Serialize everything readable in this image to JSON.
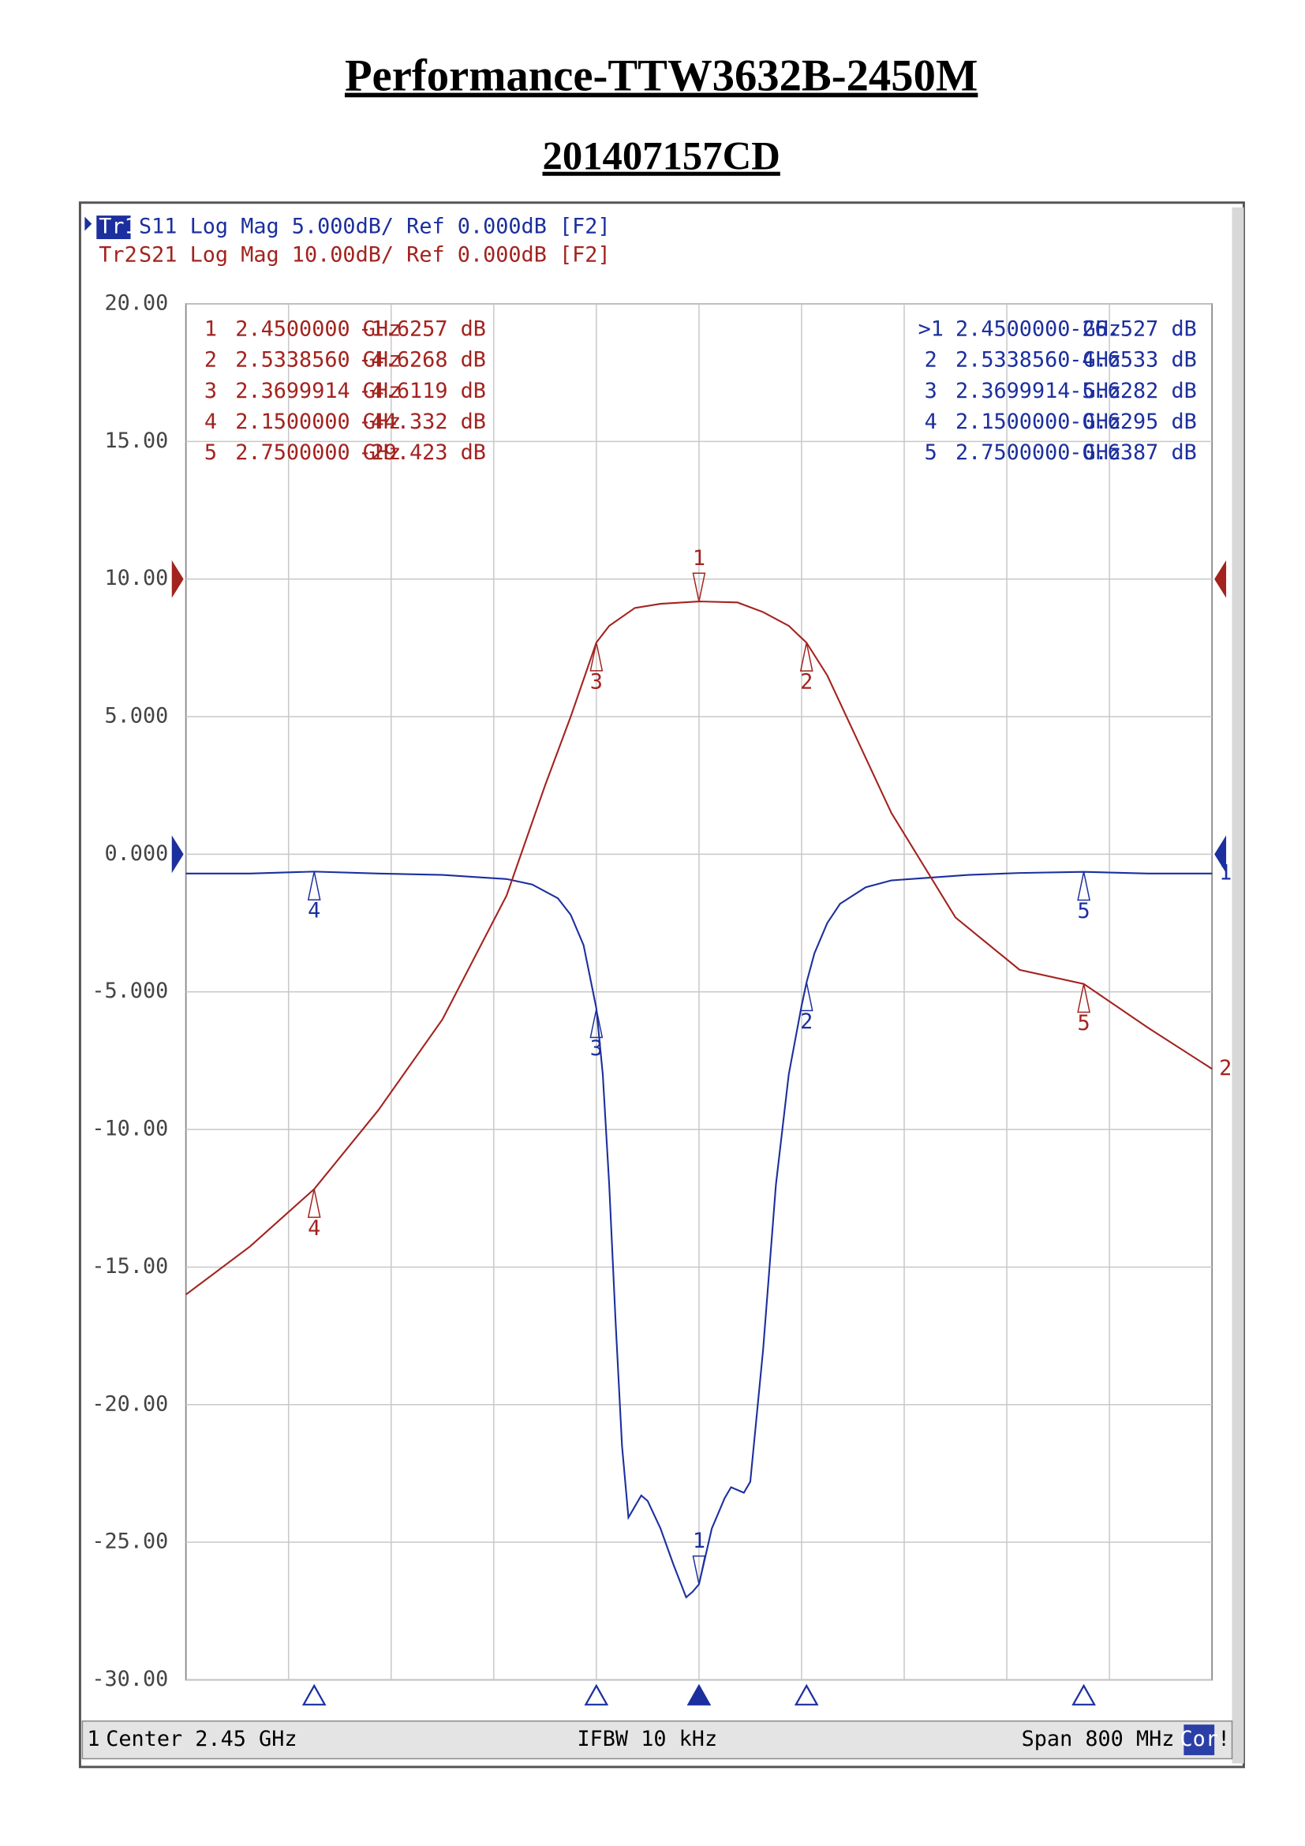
{
  "title": "Performance-TTW3632B-2450M",
  "subtitle": "201407157CD",
  "chart_data": {
    "type": "line",
    "header": [
      {
        "tag": "Tr1",
        "text": "S11 Log Mag 5.000dB/ Ref 0.000dB [F2]"
      },
      {
        "tag": "Tr2",
        "text": "S21 Log Mag 10.00dB/ Ref 0.000dB [F2]"
      }
    ],
    "xlim": [
      2.05,
      2.85
    ],
    "ylim": [
      -30,
      20
    ],
    "yticks": [
      {
        "value": 20,
        "label": "20.00"
      },
      {
        "value": 15,
        "label": "15.00"
      },
      {
        "value": 10,
        "label": "10.00"
      },
      {
        "value": 5,
        "label": "5.000"
      },
      {
        "value": 0,
        "label": "0.000"
      },
      {
        "value": -5,
        "label": "-5.000"
      },
      {
        "value": -10,
        "label": "-10.00"
      },
      {
        "value": -15,
        "label": "-15.00"
      },
      {
        "value": -20,
        "label": "-20.00"
      },
      {
        "value": -25,
        "label": "-25.00"
      },
      {
        "value": -30,
        "label": "-30.00"
      }
    ],
    "y2lim": [
      -80,
      20
    ],
    "grid": true,
    "series": [
      {
        "name": "S11",
        "trace_number": "1",
        "color": "#1c2f9e",
        "x": [
          2.05,
          2.1,
          2.15,
          2.2,
          2.25,
          2.3,
          2.32,
          2.34,
          2.35,
          2.36,
          2.37,
          2.375,
          2.38,
          2.385,
          2.39,
          2.395,
          2.4,
          2.405,
          2.41,
          2.42,
          2.43,
          2.44,
          2.445,
          2.45,
          2.46,
          2.47,
          2.475,
          2.485,
          2.49,
          2.5,
          2.51,
          2.52,
          2.53,
          2.5339,
          2.54,
          2.55,
          2.56,
          2.58,
          2.6,
          2.63,
          2.66,
          2.7,
          2.75,
          2.8,
          2.85
        ],
        "values": [
          -0.7,
          -0.7,
          -0.63,
          -0.7,
          -0.75,
          -0.9,
          -1.1,
          -1.6,
          -2.2,
          -3.3,
          -5.6,
          -8,
          -12,
          -17,
          -21.5,
          -24.1,
          -23.7,
          -23.3,
          -23.5,
          -24.5,
          -25.8,
          -27.0,
          -26.8,
          -26.527,
          -24.5,
          -23.4,
          -23.0,
          -23.2,
          -22.8,
          -18,
          -12,
          -8,
          -5.5,
          -4.6533,
          -3.6,
          -2.5,
          -1.8,
          -1.2,
          -0.95,
          -0.85,
          -0.75,
          -0.68,
          -0.6387,
          -0.7,
          -0.7
        ],
        "markers": {
          "labels": [
            "1",
            "2",
            "3",
            "4",
            "5"
          ],
          "table_labels": [
            ">1",
            "2",
            "3",
            "4",
            "5"
          ],
          "x": [
            2.45,
            2.533856,
            2.3699914,
            2.15,
            2.75
          ],
          "x_labels": [
            "2.4500000 GHz",
            "2.5338560 GHz",
            "2.3699914 GHz",
            "2.1500000 GHz",
            "2.7500000 GHz"
          ],
          "values": [
            -26.527,
            -4.6533,
            -5.6282,
            -0.6295,
            -0.6387
          ],
          "value_labels": [
            "-26.527 dB",
            "-4.6533 dB",
            "-5.6282 dB",
            "-0.6295 dB",
            "-0.6387 dB"
          ]
        }
      },
      {
        "name": "S21",
        "trace_number": "2",
        "color": "#a3231f",
        "axis": "y2",
        "x": [
          2.05,
          2.1,
          2.15,
          2.2,
          2.25,
          2.3,
          2.33,
          2.35,
          2.3699914,
          2.38,
          2.4,
          2.42,
          2.45,
          2.48,
          2.5,
          2.52,
          2.533856,
          2.55,
          2.6,
          2.65,
          2.7,
          2.75,
          2.8,
          2.85
        ],
        "values": [
          -52,
          -48.5,
          -44.332,
          -38.6,
          -32,
          -23,
          -15,
          -10,
          -4.6119,
          -3.4,
          -2.1,
          -1.8,
          -1.6257,
          -1.7,
          -2.4,
          -3.4,
          -4.6268,
          -7,
          -17,
          -24.6,
          -28.4,
          -29.423,
          -32.6,
          -35.6
        ],
        "markers": {
          "labels": [
            "1",
            "2",
            "3",
            "4",
            "5"
          ],
          "table_labels": [
            "1",
            "2",
            "3",
            "4",
            "5"
          ],
          "x": [
            2.45,
            2.533856,
            2.3699914,
            2.15,
            2.75
          ],
          "x_labels": [
            "2.4500000 GHz",
            "2.5338560 GHz",
            "2.3699914 GHz",
            "2.1500000 GHz",
            "2.7500000 GHz"
          ],
          "values": [
            -1.6257,
            -4.6268,
            -4.6119,
            -44.332,
            -29.423
          ],
          "value_labels": [
            "-1.6257 dB",
            "-4.6268 dB",
            "-4.6119 dB",
            "-44.332 dB",
            "-29.423 dB"
          ]
        }
      }
    ],
    "footer": {
      "channel": "1",
      "center": "Center 2.45 GHz",
      "ifbw": "IFBW 10 kHz",
      "span": "Span 800 MHz",
      "cor": "Cor",
      "flag": "!"
    }
  }
}
